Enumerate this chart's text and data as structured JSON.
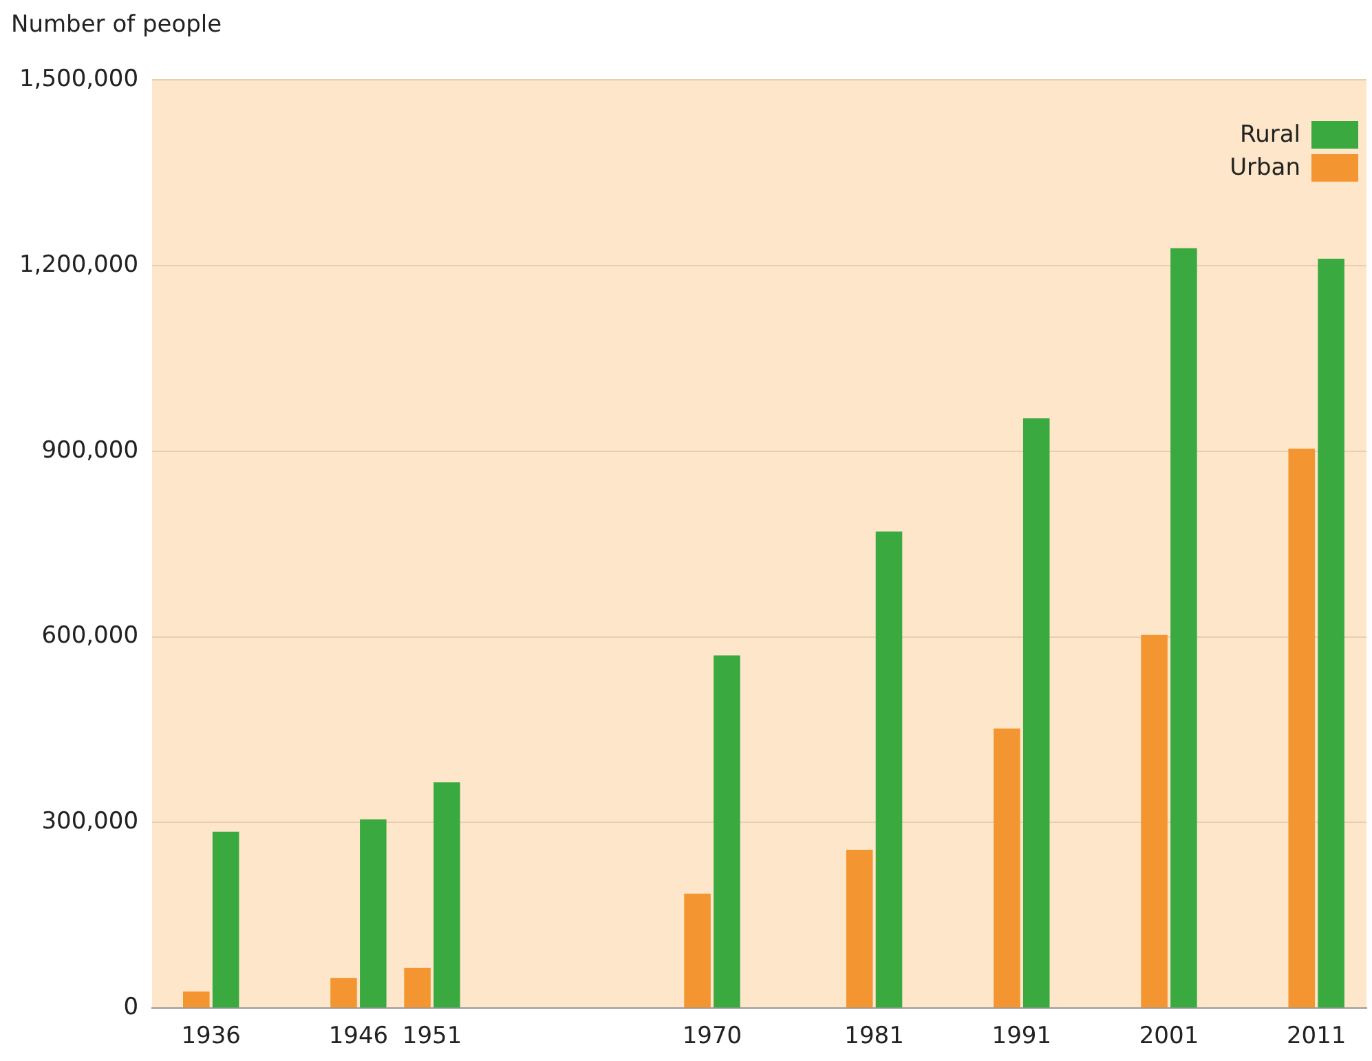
{
  "chart_data": {
    "type": "bar",
    "ylabel": "Number of people",
    "x": [
      1936,
      1946,
      1951,
      1970,
      1981,
      1991,
      2001,
      2011
    ],
    "series": [
      {
        "name": "Urban",
        "color": "#f39530",
        "values": [
          27000,
          49000,
          65000,
          185000,
          256000,
          452000,
          603000,
          904000
        ]
      },
      {
        "name": "Rural",
        "color": "#3aaa40",
        "values": [
          285000,
          305000,
          365000,
          570000,
          770000,
          953000,
          1228000,
          1211000
        ]
      }
    ],
    "xlim": [
      1932,
      2014.4
    ],
    "xticks": [
      1936,
      1946,
      1951,
      1970,
      1981,
      1991,
      2001,
      2011
    ],
    "ylim": [
      0,
      1500000
    ],
    "yticks": [
      {
        "value": 0,
        "label": "0"
      },
      {
        "value": 300000,
        "label": "300,000"
      },
      {
        "value": 600000,
        "label": "600,000"
      },
      {
        "value": 900000,
        "label": "900,000"
      },
      {
        "value": 1200000,
        "label": "1,200,000"
      },
      {
        "value": 1500000,
        "label": "1,500,000"
      }
    ],
    "grid": "y",
    "legend": "top right"
  }
}
